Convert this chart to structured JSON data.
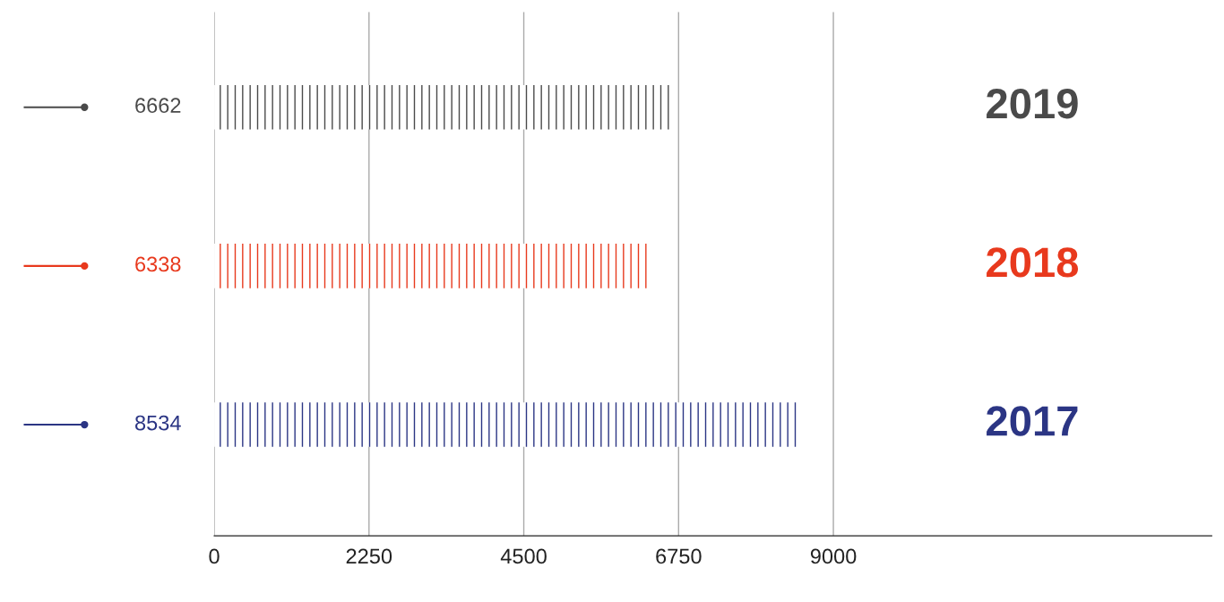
{
  "chart_data": {
    "type": "bar",
    "orientation": "horizontal",
    "categories": [
      "2019",
      "2018",
      "2017"
    ],
    "values": [
      6662,
      6338,
      8534
    ],
    "colors": [
      "#4a4a4a",
      "#e8391d",
      "#2b3584"
    ],
    "xlim": [
      0,
      14500
    ],
    "xticks": [
      0,
      2250,
      4500,
      6750,
      9000
    ],
    "grid": "x",
    "data_labels": true
  }
}
